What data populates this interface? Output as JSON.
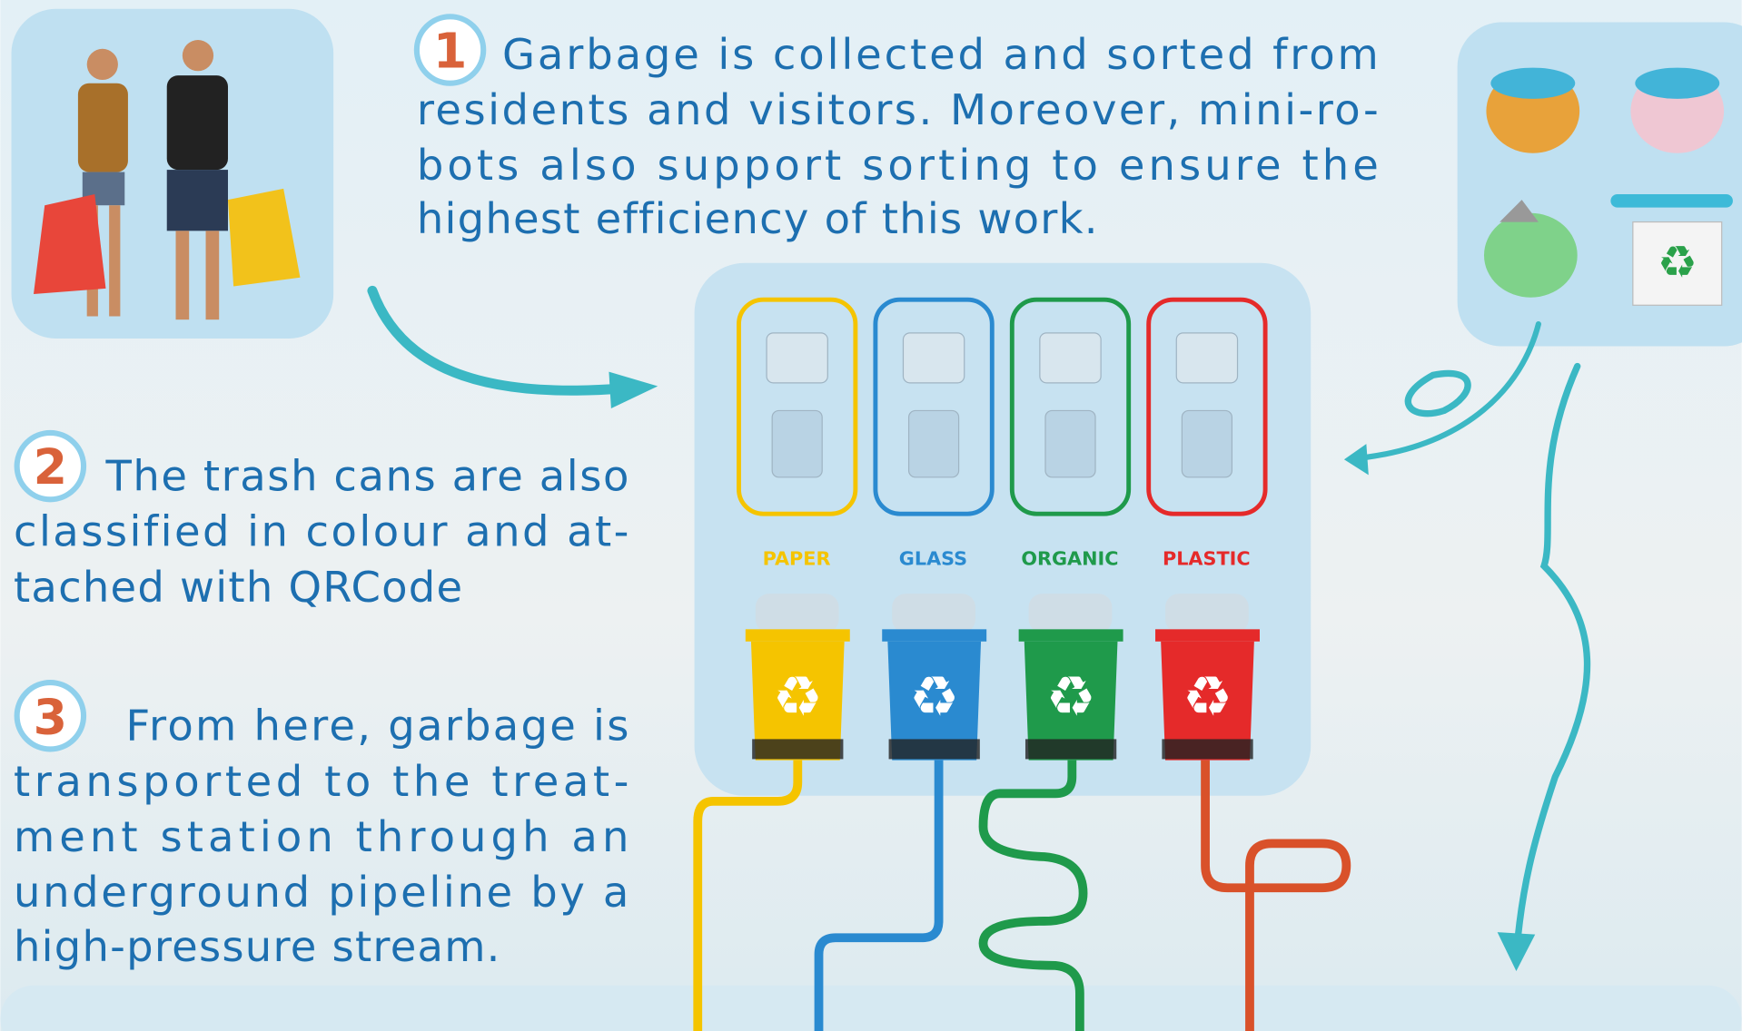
{
  "steps": [
    {
      "number": "1",
      "lines": [
        "Garbage is collected and sorted from",
        "residents and visitors. Moreover, mini-ro-",
        "bots also support sorting to ensure the",
        "highest efficiency of this work."
      ]
    },
    {
      "number": "2",
      "lines": [
        "The trash cans are also",
        "classified in colour and at-",
        "tached with QRCode"
      ]
    },
    {
      "number": "3",
      "lines": [
        "From here, garbage is",
        "transported to the treat-",
        "ment station through an",
        "underground pipeline by a",
        "high-pressure stream."
      ]
    }
  ],
  "bins": [
    {
      "label": "PAPER",
      "color": "#f5c400"
    },
    {
      "label": "GLASS",
      "color": "#2a8ad0"
    },
    {
      "label": "ORGANIC",
      "color": "#1f9a4b"
    },
    {
      "label": "PLASTIC",
      "color": "#e52a2a"
    }
  ]
}
